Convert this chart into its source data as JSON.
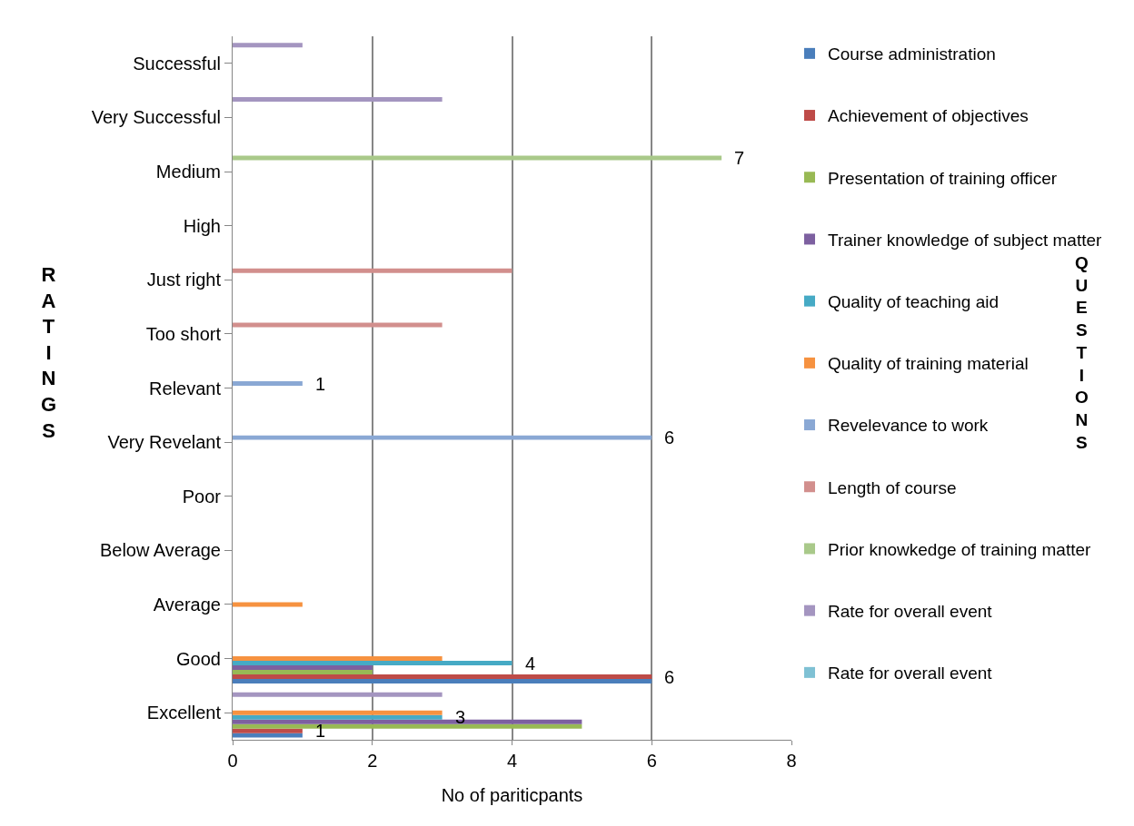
{
  "chart_data": {
    "type": "bar",
    "orientation": "horizontal",
    "xlabel": "No of pariticpants",
    "ylabel": "RATINGS",
    "legend_title": "QUESTIONS",
    "categories": [
      "Successful",
      "Very Successful",
      "Medium",
      "High",
      "Just right",
      "Too short",
      "Relevant",
      "Very Revelant",
      "Poor",
      "Below Average",
      "Average",
      "Good",
      "Excellent"
    ],
    "series": [
      {
        "name": "Course administration",
        "color": "#4a7ebb",
        "values": [
          null,
          null,
          null,
          null,
          null,
          null,
          null,
          null,
          null,
          null,
          null,
          6,
          1
        ]
      },
      {
        "name": "Achievement of objectives",
        "color": "#be4b48",
        "values": [
          null,
          null,
          null,
          null,
          null,
          null,
          null,
          null,
          null,
          null,
          null,
          6,
          1
        ],
        "value_labels": [
          null,
          null,
          null,
          null,
          null,
          null,
          null,
          null,
          null,
          null,
          null,
          "6",
          "1"
        ]
      },
      {
        "name": "Presentation of training officer",
        "color": "#98b954",
        "values": [
          null,
          null,
          null,
          null,
          null,
          null,
          null,
          null,
          null,
          null,
          null,
          2,
          5
        ]
      },
      {
        "name": "Trainer knowledge of subject matter",
        "color": "#7d60a0",
        "values": [
          null,
          null,
          null,
          null,
          null,
          null,
          null,
          null,
          null,
          null,
          null,
          2,
          5
        ]
      },
      {
        "name": "Quality of teaching aid",
        "color": "#46aac5",
        "values": [
          null,
          null,
          null,
          null,
          null,
          null,
          null,
          null,
          null,
          null,
          null,
          4,
          3
        ],
        "value_labels": [
          null,
          null,
          null,
          null,
          null,
          null,
          null,
          null,
          null,
          null,
          null,
          "4",
          "3"
        ]
      },
      {
        "name": "Quality of training material",
        "color": "#f69240",
        "values": [
          null,
          null,
          null,
          null,
          null,
          null,
          null,
          null,
          null,
          null,
          1,
          3,
          3
        ]
      },
      {
        "name": "Revelevance to work",
        "color": "#8aa8d4",
        "values": [
          null,
          null,
          null,
          null,
          null,
          null,
          1,
          6,
          null,
          null,
          null,
          null,
          null
        ],
        "value_labels": [
          null,
          null,
          null,
          null,
          null,
          null,
          "1",
          "6",
          null,
          null,
          null,
          null,
          null
        ]
      },
      {
        "name": "Length of course",
        "color": "#d28f8d",
        "values": [
          null,
          null,
          null,
          null,
          4,
          3,
          null,
          null,
          null,
          null,
          null,
          null,
          null
        ]
      },
      {
        "name": "Prior knowkedge of training matter",
        "color": "#a9c98a",
        "values": [
          null,
          null,
          7,
          null,
          null,
          null,
          null,
          null,
          null,
          null,
          null,
          null,
          null
        ],
        "value_labels": [
          null,
          null,
          "7",
          null,
          null,
          null,
          null,
          null,
          null,
          null,
          null,
          null,
          null
        ]
      },
      {
        "name": "Rate for overall event",
        "color": "#a495c0",
        "values": [
          1,
          3,
          null,
          null,
          null,
          null,
          null,
          null,
          null,
          null,
          null,
          null,
          3
        ]
      },
      {
        "name": "Rate for overall event",
        "color": "#7fc1d4",
        "values": [
          null,
          null,
          null,
          null,
          null,
          null,
          null,
          null,
          null,
          null,
          null,
          null,
          null
        ]
      }
    ],
    "xlim": [
      0,
      8
    ],
    "xticks": [
      0,
      2,
      4,
      6,
      8
    ],
    "grid": "x",
    "legend": "right"
  }
}
